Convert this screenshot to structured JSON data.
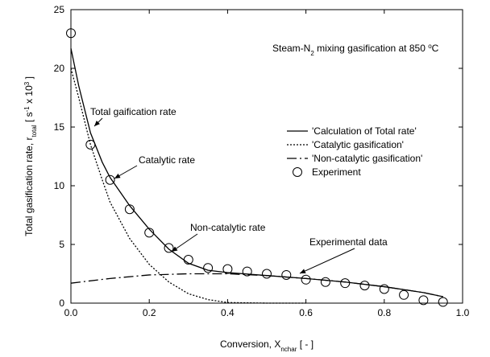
{
  "chart_data": {
    "type": "line",
    "title_parts": [
      {
        "text": "Steam-N"
      },
      {
        "text": "2",
        "shift": "sub"
      },
      {
        "text": " mixing gasification at 850 "
      },
      {
        "text": "o",
        "shift": "super"
      },
      {
        "text": "C"
      }
    ],
    "xlabel_parts": [
      {
        "text": "Conversion, X"
      },
      {
        "text": "nchar",
        "shift": "sub"
      },
      {
        "text": " [ - ]"
      }
    ],
    "ylabel_parts": [
      {
        "text": "Total gasification rate, r"
      },
      {
        "text": "total",
        "shift": "sub"
      },
      {
        "text": " [ s"
      },
      {
        "text": "-1",
        "shift": "super"
      },
      {
        "text": " x 10"
      },
      {
        "text": "3",
        "shift": "super"
      },
      {
        "text": " ]"
      }
    ],
    "xlim": [
      0,
      1
    ],
    "ylim": [
      0,
      25
    ],
    "xticks": [
      {
        "value": 0,
        "label": "0.0"
      },
      {
        "value": 0.2,
        "label": "0.2"
      },
      {
        "value": 0.4,
        "label": "0.4"
      },
      {
        "value": 0.6,
        "label": "0.6"
      },
      {
        "value": 0.8,
        "label": "0.8"
      },
      {
        "value": 1,
        "label": "1.0"
      }
    ],
    "yticks": [
      0,
      5,
      10,
      15,
      20,
      25
    ],
    "legend": "upper right",
    "series": [
      {
        "name": "'Calculation of Total rate'",
        "color": "#000000",
        "dash": "solid",
        "x": [
          0,
          0.02,
          0.05,
          0.08,
          0.1,
          0.15,
          0.2,
          0.25,
          0.3,
          0.35,
          0.4,
          0.5,
          0.6,
          0.7,
          0.8,
          0.9,
          0.95
        ],
        "values": [
          21.7,
          18.5,
          14.5,
          12,
          10.7,
          8.3,
          6.3,
          4.6,
          3.4,
          2.8,
          2.6,
          2.35,
          2.1,
          1.8,
          1.4,
          0.9,
          0.55
        ]
      },
      {
        "name": "'Catalytic gasification'",
        "color": "#000000",
        "dash": "dotted",
        "x": [
          0,
          0.02,
          0.05,
          0.08,
          0.1,
          0.15,
          0.2,
          0.25,
          0.3,
          0.35,
          0.4,
          0.5,
          0.6
        ],
        "values": [
          20,
          17.5,
          13.5,
          10.5,
          8.6,
          5.5,
          3.3,
          1.8,
          0.8,
          0.3,
          0.05,
          0,
          0
        ]
      },
      {
        "name": "'Non-catalytic gasification'",
        "color": "#000000",
        "dash": "dashdot",
        "x": [
          0,
          0.1,
          0.2,
          0.3,
          0.4,
          0.5,
          0.6,
          0.7,
          0.8,
          0.9,
          0.95
        ],
        "values": [
          1.7,
          2.1,
          2.4,
          2.5,
          2.5,
          2.35,
          2.1,
          1.8,
          1.4,
          0.9,
          0.55
        ]
      },
      {
        "name": "Experiment",
        "color": "#000000",
        "marker": "circle",
        "x": [
          0,
          0.05,
          0.1,
          0.15,
          0.2,
          0.25,
          0.3,
          0.35,
          0.4,
          0.45,
          0.5,
          0.55,
          0.6,
          0.65,
          0.7,
          0.75,
          0.8,
          0.85,
          0.9,
          0.95
        ],
        "values": [
          23,
          13.5,
          10.5,
          8,
          6,
          4.7,
          3.7,
          3.0,
          2.9,
          2.7,
          2.5,
          2.4,
          2.0,
          1.8,
          1.7,
          1.5,
          1.2,
          0.7,
          0.25,
          0.1
        ]
      }
    ],
    "annotations": [
      "Total gaification rate",
      "Catalytic rate",
      "Non-catalytic rate",
      "Experimental data"
    ]
  }
}
